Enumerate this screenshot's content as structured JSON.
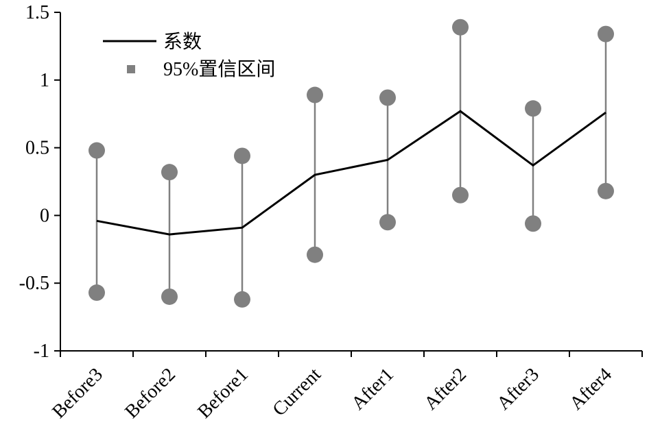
{
  "chart_data": {
    "type": "line",
    "title": "",
    "xlabel": "",
    "ylabel": "",
    "categories": [
      "Before3",
      "Before2",
      "Before1",
      "Current",
      "After1",
      "After2",
      "After3",
      "After4"
    ],
    "ylim": [
      -1,
      1.5
    ],
    "yticks": [
      -1,
      -0.5,
      0,
      0.5,
      1,
      1.5
    ],
    "ytick_labels": [
      "-1",
      "-0.5",
      "0",
      "0.5",
      "1",
      "1.5"
    ],
    "grid": false,
    "legend_position": "top-left",
    "series": [
      {
        "name": "系数",
        "kind": "line",
        "color": "#000000",
        "values": [
          -0.04,
          -0.14,
          -0.09,
          0.3,
          0.41,
          0.77,
          0.37,
          0.76
        ]
      },
      {
        "name": "95%置信区间",
        "kind": "errorbar",
        "color": "#808080",
        "lower": [
          -0.57,
          -0.6,
          -0.62,
          -0.29,
          -0.05,
          0.15,
          -0.06,
          0.18
        ],
        "upper": [
          0.48,
          0.32,
          0.44,
          0.89,
          0.87,
          1.39,
          0.79,
          1.34
        ]
      }
    ]
  }
}
